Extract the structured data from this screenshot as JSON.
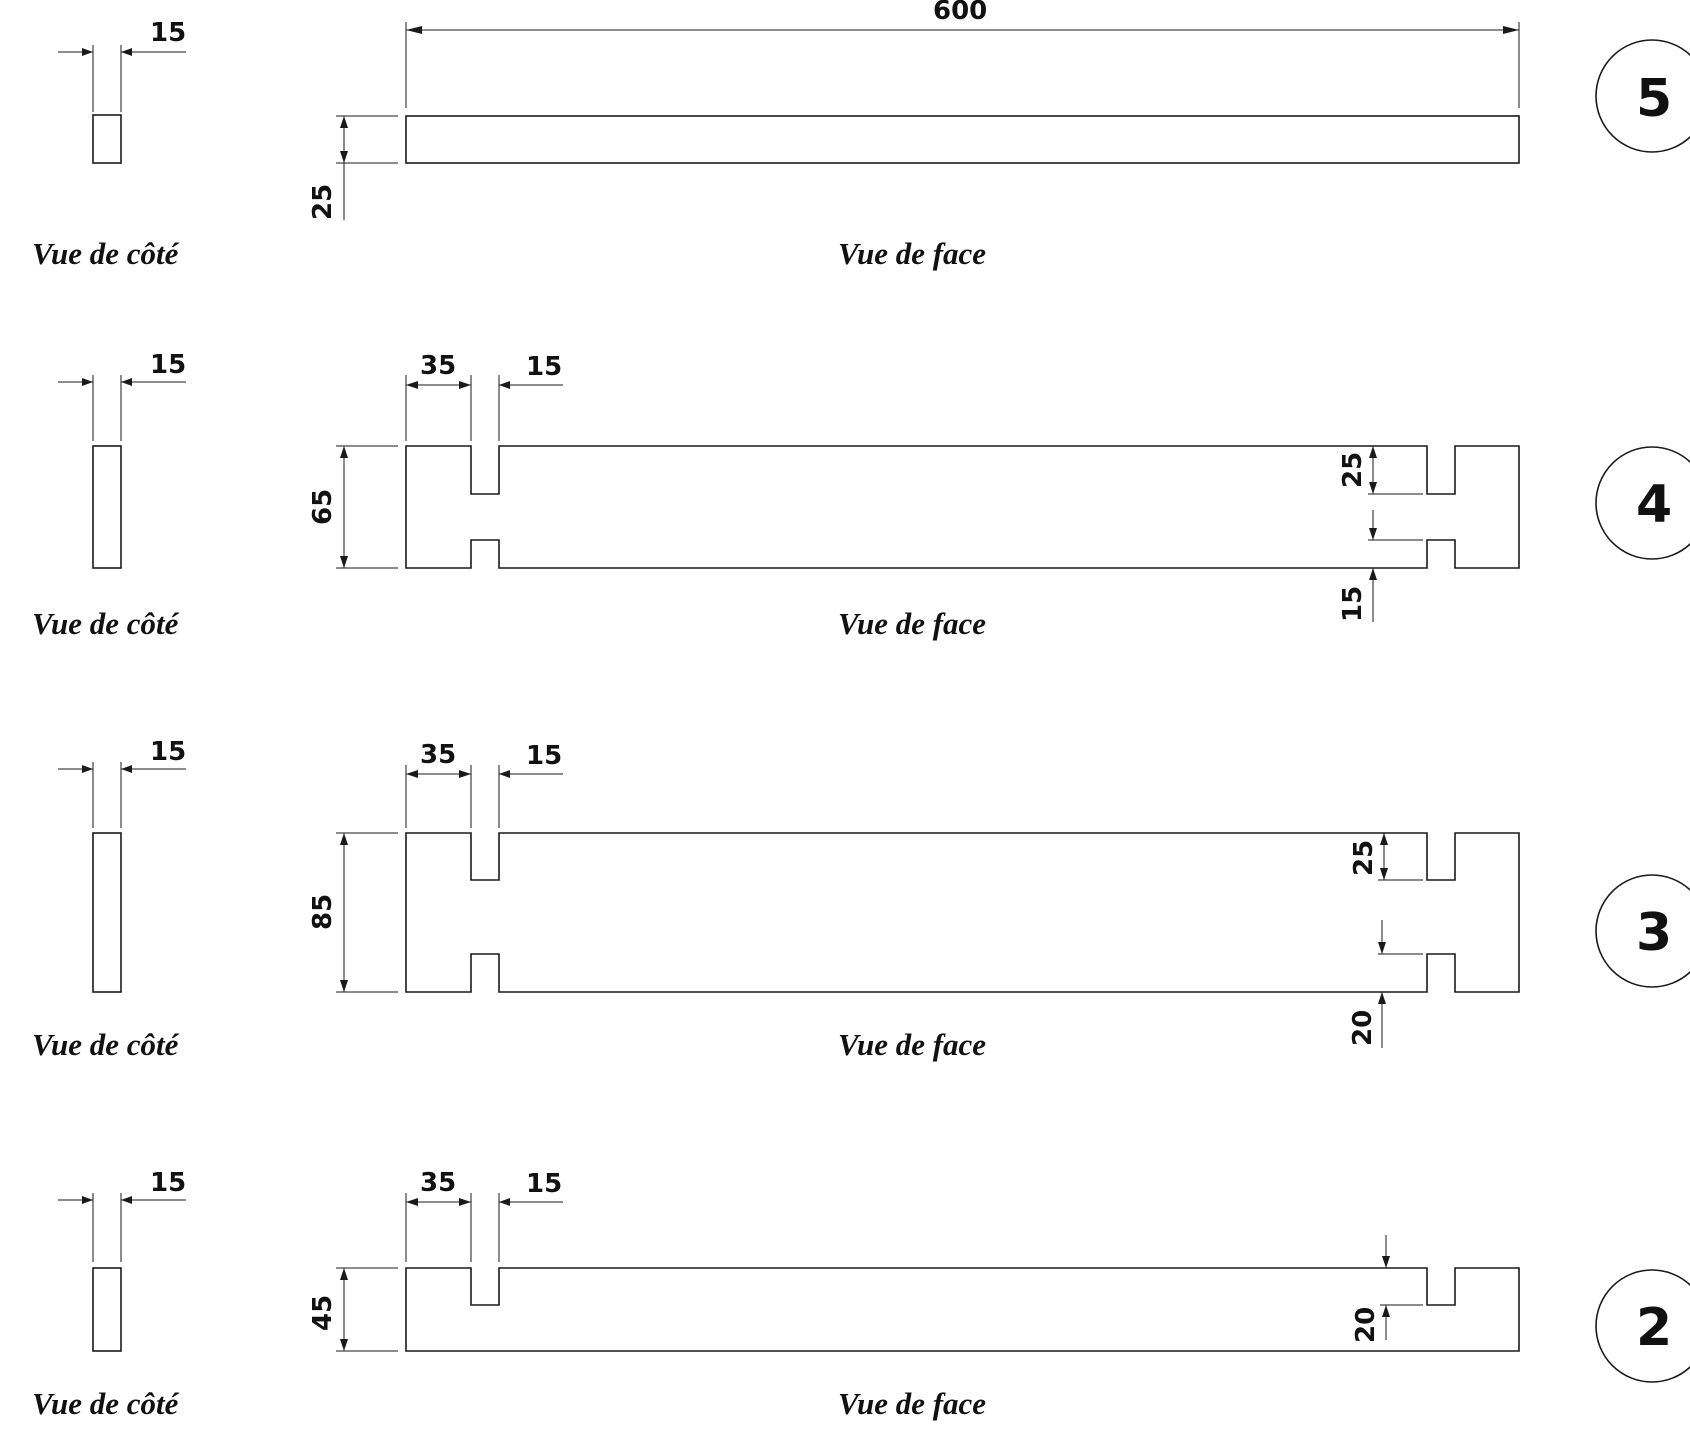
{
  "parts": [
    {
      "number": "5",
      "side_caption": "Vue de côté",
      "face_caption": "Vue de face",
      "side_width_label": "15",
      "length_label": "600",
      "height_label": "25"
    },
    {
      "number": "4",
      "side_caption": "Vue de côté",
      "face_caption": "Vue de face",
      "side_width_label": "15",
      "notch_offset_label": "35",
      "notch_width_label": "15",
      "height_label": "65",
      "top_notch_depth_label": "25",
      "bottom_notch_depth_label": "15"
    },
    {
      "number": "3",
      "side_caption": "Vue de côté",
      "face_caption": "Vue de face",
      "side_width_label": "15",
      "notch_offset_label": "35",
      "notch_width_label": "15",
      "height_label": "85",
      "top_notch_depth_label": "25",
      "bottom_notch_depth_label": "20"
    },
    {
      "number": "2",
      "side_caption": "Vue de côté",
      "face_caption": "Vue de face",
      "side_width_label": "15",
      "notch_offset_label": "35",
      "notch_width_label": "15",
      "height_label": "45",
      "top_notch_depth_label": "20"
    }
  ]
}
